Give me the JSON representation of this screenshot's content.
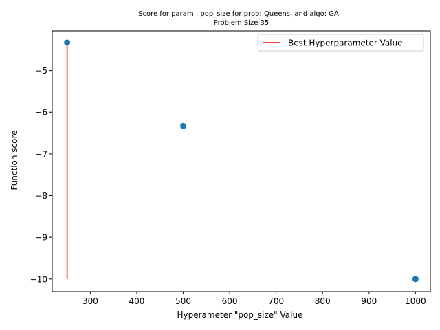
{
  "chart_data": {
    "type": "scatter",
    "title": "Score for param : pop_size for prob: Queens, and algo: GA",
    "subtitle": "Problem Size 35",
    "xlabel": "Hyperameter \"pop_size\" Value",
    "ylabel": "Function score",
    "xlim": [
      218,
      1032
    ],
    "ylim": [
      -10.3,
      -4.05
    ],
    "xticks": [
      300,
      400,
      500,
      600,
      700,
      800,
      900,
      1000
    ],
    "yticks": [
      -10,
      -9,
      -8,
      -7,
      -6,
      -5
    ],
    "xtick_labels": [
      "300",
      "400",
      "500",
      "600",
      "700",
      "800",
      "900",
      "1000"
    ],
    "ytick_labels": [
      "−10",
      "−9",
      "−8",
      "−7",
      "−6",
      "−5"
    ],
    "points": {
      "x": [
        250,
        500,
        1000
      ],
      "y": [
        -4.33,
        -6.33,
        -10.0
      ],
      "color": "#1f77b4"
    },
    "best_line": {
      "name": "Best Hyperparameter Value",
      "x": 250,
      "y_from": -10.0,
      "y_to": -4.33,
      "color": "#ff0000"
    },
    "legend": {
      "placement": "top-right",
      "entries": [
        "Best Hyperparameter Value"
      ]
    },
    "grid": false
  }
}
